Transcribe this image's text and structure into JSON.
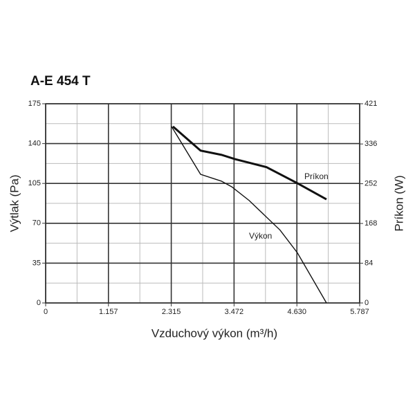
{
  "chart_data": {
    "type": "line",
    "title": "A-E 454 T",
    "x_label": "Vzduchový výkon (m³/h)",
    "y_label": "Výtlak (Pa)",
    "y2_label": "Príkon (W)",
    "xlim": [
      0,
      5.787
    ],
    "xticks": [
      0,
      1.157,
      2.315,
      3.472,
      {
        "value": 4.63,
        "label": "4.630"
      },
      5.787
    ],
    "ylim": [
      0,
      175
    ],
    "yticks": [
      0,
      35,
      70,
      105,
      140,
      175
    ],
    "y2lim": [
      0,
      421
    ],
    "y2ticks": [
      0,
      84,
      168,
      252,
      336,
      421
    ],
    "grid": true,
    "series": [
      {
        "name": "Výkon",
        "color": "#111111",
        "x": [
          2.32,
          2.855,
          3.24,
          3.43,
          3.75,
          4.32,
          4.64,
          5.175
        ],
        "values": [
          155,
          113,
          107,
          102,
          90,
          64,
          44,
          0
        ]
      },
      {
        "name": "Príkon",
        "color": "#111111",
        "axis": "y2",
        "x": [
          2.345,
          2.855,
          3.24,
          3.49,
          4.07,
          4.64,
          5.175
        ],
        "values": [
          373,
          322,
          313,
          304,
          287,
          253,
          219
        ]
      }
    ]
  }
}
